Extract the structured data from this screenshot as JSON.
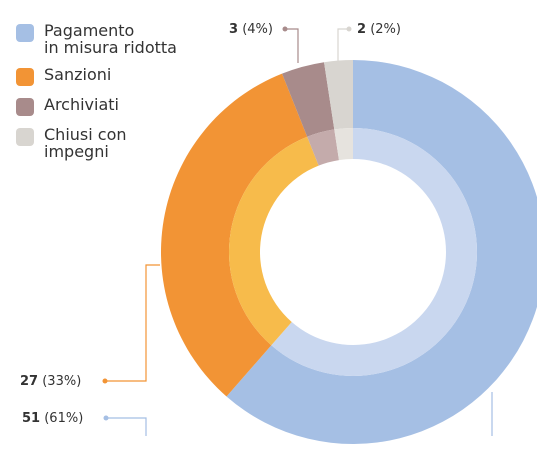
{
  "chart_data": {
    "type": "donut",
    "categories": [
      "Pagamento\nin misura ridotta",
      "Sanzioni",
      "Archiviati",
      "Chiusi con\nimpegni"
    ],
    "values": [
      51,
      27,
      3,
      2
    ],
    "percent_labels": [
      "(61%)",
      "(33%)",
      "(4%)",
      "(2%)"
    ],
    "colors": [
      "#a5bfe4",
      "#f29435",
      "#a88b8b",
      "#d8d5d0"
    ],
    "inner_colors": [
      "#c9d7ef",
      "#f7bb4b",
      "#c4abab",
      "#e6e3de"
    ],
    "legend": "top-left"
  }
}
